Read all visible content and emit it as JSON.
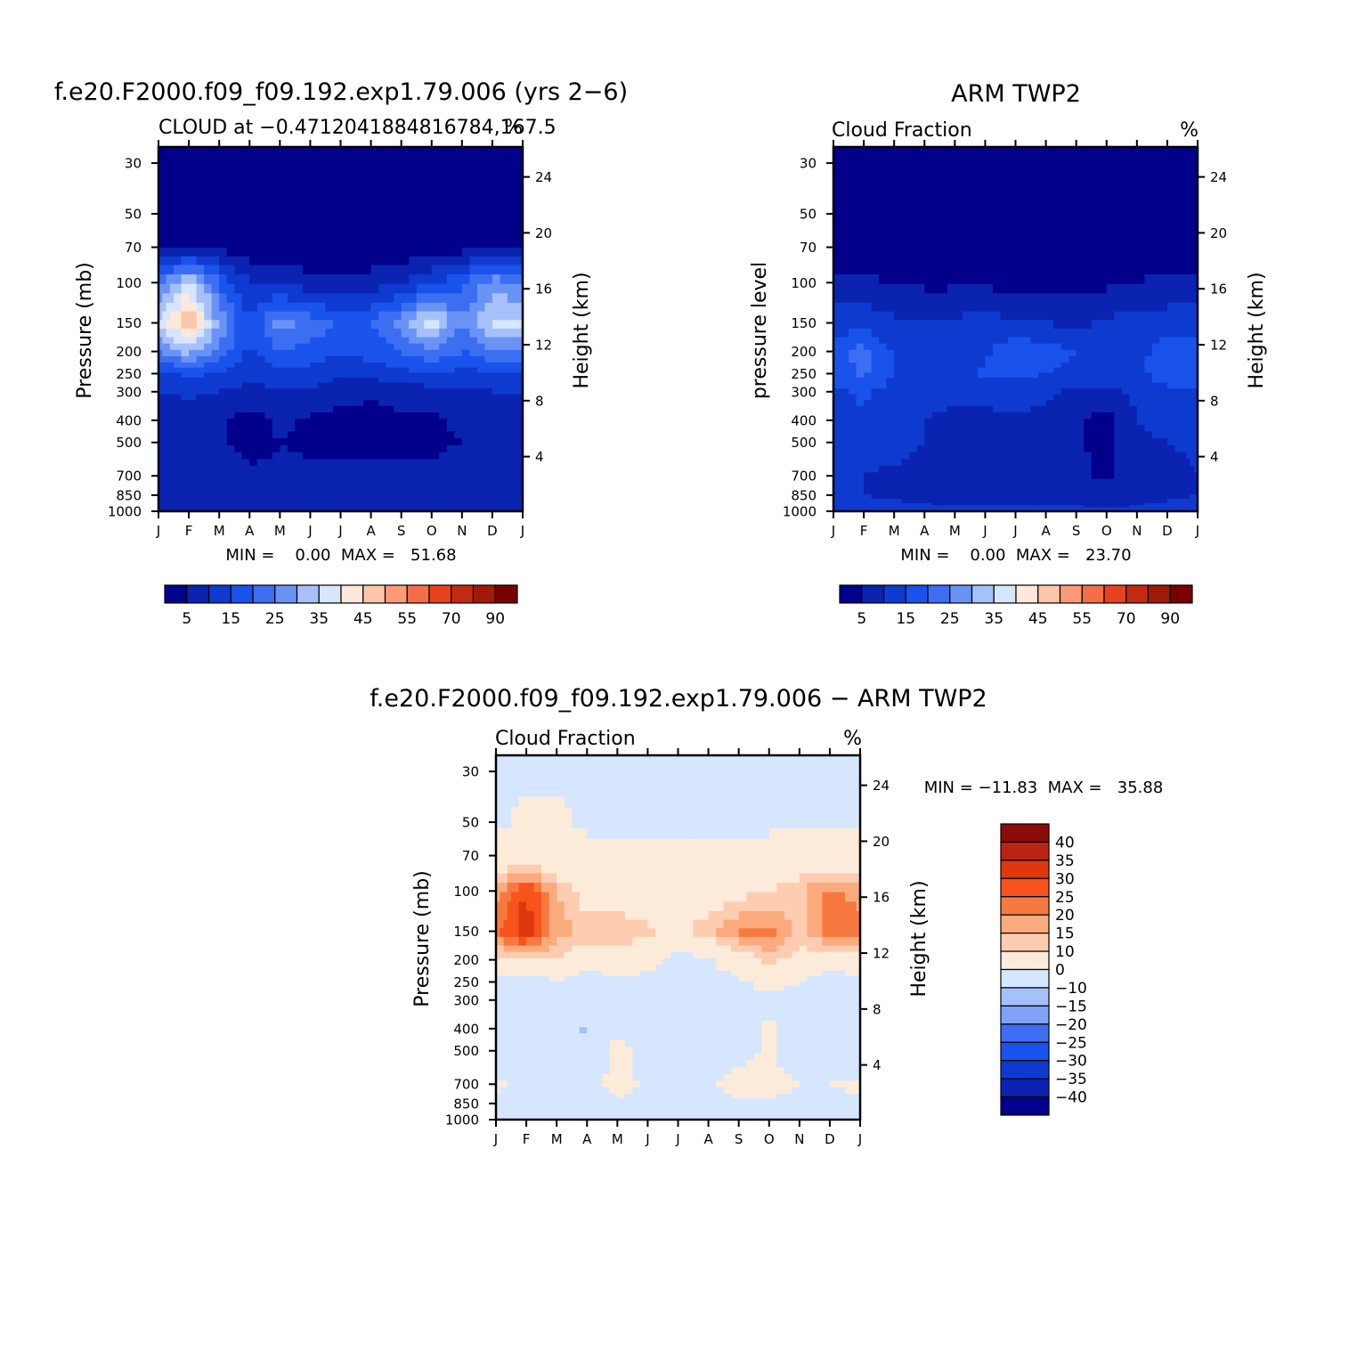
{
  "figure": {
    "month_labels": [
      "J",
      "F",
      "M",
      "A",
      "M",
      "J",
      "J",
      "A",
      "S",
      "O",
      "N",
      "D",
      "J"
    ],
    "pressure_ticks": [
      "30",
      "50",
      "70",
      "100",
      "150",
      "200",
      "250",
      "300",
      "400",
      "500",
      "700",
      "850",
      "1000"
    ],
    "height_ticks": [
      "24",
      "20",
      "16",
      "12",
      "8",
      "4"
    ]
  },
  "panels": {
    "model": {
      "title": "f.e20.F2000.f09_f09.192.exp1.79.006 (yrs 2−6)",
      "subtitle_left": "CLOUD at −0.4712041884816784,167.5",
      "units": "%",
      "ylabel_left": "Pressure (mb)",
      "ylabel_right": "Height (km)",
      "stats": "MIN =    0.00  MAX =   51.68"
    },
    "obs": {
      "title": "ARM TWP2",
      "subtitle_left": "Cloud Fraction",
      "units": "%",
      "ylabel_left": "pressure level",
      "ylabel_right": "Height (km)",
      "stats": "MIN =    0.00  MAX =   23.70"
    },
    "diff": {
      "title": "f.e20.F2000.f09_f09.192.exp1.79.006 − ARM TWP2",
      "subtitle_left": "Cloud Fraction",
      "units": "%",
      "ylabel_left": "Pressure (mb)",
      "ylabel_right": "Height (km)",
      "stats": "MIN = −11.83  MAX =   35.88"
    }
  },
  "colorbars": {
    "absolute": {
      "colors": [
        "#02008a",
        "#0a23b0",
        "#0e3ad0",
        "#1a52ec",
        "#3c6ef2",
        "#6a93f6",
        "#a6c0fa",
        "#d6e6fe",
        "#fde8d9",
        "#fcc6a9",
        "#fb9a76",
        "#f66e47",
        "#e8431f",
        "#c42a10",
        "#a11a08",
        "#7a0000"
      ],
      "labels": [
        "5",
        "15",
        "25",
        "35",
        "45",
        "55",
        "70",
        "90"
      ]
    },
    "difference": {
      "colors": [
        "#8c0a0a",
        "#bb2410",
        "#e0380e",
        "#f7531d",
        "#f7793f",
        "#fbaa7e",
        "#fdccb1",
        "#fdebda",
        "#d6e6fe",
        "#a6c0fa",
        "#7fa2f6",
        "#3c6ef2",
        "#1a52ec",
        "#0e3ad0",
        "#0a23b0",
        "#02008a"
      ],
      "labels": [
        "40",
        "35",
        "30",
        "25",
        "20",
        "15",
        "10",
        "0",
        "−10",
        "−15",
        "−20",
        "−25",
        "−30",
        "−35",
        "−40"
      ]
    }
  },
  "chart_data": [
    {
      "type": "heatmap",
      "title": "f.e20.F2000.f09_f09.192.exp1.79.006 (yrs 2−6)",
      "variable": "CLOUD at −0.4712041884816784,167.5",
      "units": "%",
      "x": [
        "J",
        "F",
        "M",
        "A",
        "M",
        "J",
        "J",
        "A",
        "S",
        "O",
        "N",
        "D",
        "J"
      ],
      "y_levels_mb": [
        30,
        50,
        70,
        100,
        150,
        200,
        250,
        300,
        400,
        500,
        700,
        850,
        1000
      ],
      "ylabel": "Pressure (mb)",
      "ylabel_right": "Height (km)",
      "min": 0.0,
      "max": 51.68,
      "levels": [
        5,
        10,
        15,
        20,
        25,
        30,
        35,
        40,
        45,
        50,
        55,
        60,
        70,
        80,
        90
      ],
      "values": [
        [
          0,
          0,
          0,
          0,
          0,
          0,
          0,
          0,
          0,
          0,
          0,
          0,
          0
        ],
        [
          0,
          0,
          0,
          0,
          0,
          0,
          0,
          0,
          0,
          0,
          0,
          0,
          0
        ],
        [
          3,
          4,
          3,
          2,
          1,
          1,
          1,
          1,
          1,
          2,
          3,
          3,
          3
        ],
        [
          24,
          36,
          20,
          10,
          9,
          7,
          6,
          7,
          10,
          14,
          19,
          28,
          24
        ],
        [
          36,
          51,
          28,
          15,
          27,
          23,
          19,
          20,
          27,
          38,
          25,
          36,
          36
        ],
        [
          25,
          32,
          24,
          14,
          20,
          18,
          16,
          17,
          20,
          25,
          20,
          24,
          25
        ],
        [
          14,
          16,
          15,
          11,
          13,
          13,
          11,
          12,
          13,
          15,
          13,
          14,
          14
        ],
        [
          10,
          11,
          10,
          8,
          10,
          9,
          7,
          6,
          7,
          8,
          9,
          10,
          10
        ],
        [
          7,
          7,
          6,
          3,
          6,
          4,
          3,
          3,
          4,
          4,
          6,
          7,
          7
        ],
        [
          6,
          6,
          6,
          3,
          5,
          4,
          4,
          4,
          4,
          4,
          5,
          6,
          6
        ],
        [
          9,
          8,
          7,
          6,
          6,
          6,
          6,
          6,
          6,
          6,
          7,
          8,
          9
        ],
        [
          9,
          9,
          8,
          7,
          7,
          7,
          7,
          7,
          7,
          7,
          7,
          8,
          9
        ],
        [
          7,
          7,
          7,
          6,
          6,
          6,
          6,
          6,
          6,
          6,
          6,
          7,
          7
        ]
      ]
    },
    {
      "type": "heatmap",
      "title": "ARM TWP2",
      "variable": "Cloud Fraction",
      "units": "%",
      "x": [
        "J",
        "F",
        "M",
        "A",
        "M",
        "J",
        "J",
        "A",
        "S",
        "O",
        "N",
        "D",
        "J"
      ],
      "y_levels_mb": [
        30,
        50,
        70,
        100,
        150,
        200,
        250,
        300,
        400,
        500,
        700,
        850,
        1000
      ],
      "ylabel": "pressure level",
      "ylabel_right": "Height (km)",
      "min": 0.0,
      "max": 23.7,
      "levels": [
        5,
        10,
        15,
        20,
        25,
        30,
        35,
        40,
        45,
        50,
        55,
        60,
        70,
        80,
        90
      ],
      "values": [
        [
          0,
          0,
          0,
          0,
          0,
          0,
          0,
          0,
          0,
          0,
          0,
          0,
          0
        ],
        [
          0,
          0,
          0,
          0,
          0,
          0,
          0,
          0,
          0,
          0,
          0,
          0,
          0
        ],
        [
          1,
          0,
          0,
          0,
          0,
          0,
          0,
          0,
          0,
          0,
          0,
          1,
          1
        ],
        [
          7,
          6,
          5,
          4,
          4,
          4,
          3,
          3,
          3,
          4,
          5,
          7,
          7
        ],
        [
          12,
          13,
          11,
          10,
          11,
          12,
          11,
          10,
          9,
          11,
          12,
          12,
          12
        ],
        [
          18,
          22,
          14,
          12,
          13,
          14,
          19,
          17,
          15,
          13,
          13,
          18,
          18
        ],
        [
          17,
          21,
          15,
          12,
          13,
          16,
          16,
          15,
          14,
          13,
          13,
          19,
          17
        ],
        [
          14,
          16,
          13,
          12,
          12,
          13,
          12,
          11,
          9,
          9,
          11,
          13,
          14
        ],
        [
          13,
          14,
          13,
          10,
          8,
          8,
          9,
          9,
          6,
          3,
          10,
          12,
          13
        ],
        [
          11,
          13,
          12,
          10,
          8,
          8,
          8,
          9,
          6,
          3,
          9,
          10,
          11
        ],
        [
          10,
          10,
          9,
          8,
          6,
          7,
          6,
          7,
          6,
          4,
          7,
          8,
          10
        ],
        [
          10,
          10,
          9,
          9,
          8,
          8,
          8,
          8,
          8,
          7,
          8,
          9,
          10
        ],
        [
          13,
          12,
          12,
          11,
          11,
          11,
          11,
          11,
          11,
          11,
          11,
          12,
          13
        ]
      ]
    },
    {
      "type": "heatmap",
      "title": "f.e20.F2000.f09_f09.192.exp1.79.006 − ARM TWP2",
      "variable": "Cloud Fraction",
      "units": "%",
      "x": [
        "J",
        "F",
        "M",
        "A",
        "M",
        "J",
        "J",
        "A",
        "S",
        "O",
        "N",
        "D",
        "J"
      ],
      "y_levels_mb": [
        30,
        50,
        70,
        100,
        150,
        200,
        250,
        300,
        400,
        500,
        700,
        850,
        1000
      ],
      "ylabel": "Pressure (mb)",
      "ylabel_right": "Height (km)",
      "min": -11.83,
      "max": 35.88,
      "levels": [
        -40,
        -35,
        -30,
        -25,
        -20,
        -15,
        -10,
        0,
        10,
        15,
        20,
        25,
        30,
        35,
        40
      ],
      "values": [
        [
          -1,
          -1,
          -1,
          -1,
          -1,
          -1,
          -1,
          -1,
          -1,
          -1,
          -1,
          -1,
          -1
        ],
        [
          -1,
          1,
          1,
          -1,
          -1,
          -1,
          -1,
          -1,
          -1,
          -1,
          -1,
          -1,
          -1
        ],
        [
          2,
          3,
          3,
          2,
          1,
          1,
          1,
          1,
          1,
          2,
          3,
          2,
          2
        ],
        [
          17,
          30,
          15,
          6,
          5,
          3,
          3,
          4,
          7,
          10,
          14,
          21,
          17
        ],
        [
          24,
          35,
          18,
          14,
          15,
          11,
          8,
          14,
          21,
          22,
          13,
          23,
          24
        ],
        [
          7,
          10,
          10,
          2,
          5,
          4,
          -3,
          -1,
          5,
          12,
          7,
          6,
          7
        ],
        [
          -3,
          -5,
          -1,
          -3,
          -1,
          -3,
          -5,
          -3,
          -1,
          2,
          0,
          -5,
          -3
        ],
        [
          -4,
          -5,
          -3,
          -4,
          -2,
          -4,
          -5,
          -5,
          -2,
          -1,
          -2,
          -3,
          -4
        ],
        [
          -6,
          -7,
          -7,
          -11,
          -2,
          -4,
          -6,
          -6,
          -2,
          1,
          -4,
          -5,
          -6
        ],
        [
          -5,
          -7,
          -6,
          -7,
          3,
          -4,
          -4,
          -5,
          -2,
          1,
          -4,
          -4,
          -5
        ],
        [
          1,
          -2,
          -2,
          -2,
          2,
          -1,
          0,
          -1,
          2,
          2,
          0,
          0,
          1
        ],
        [
          -1,
          -1,
          -1,
          -2,
          -1,
          -1,
          -1,
          -1,
          -1,
          -1,
          -1,
          -1,
          -1
        ],
        [
          -6,
          -5,
          -5,
          -5,
          -5,
          -5,
          -5,
          -5,
          -5,
          -5,
          -5,
          -5,
          -6
        ]
      ]
    }
  ]
}
